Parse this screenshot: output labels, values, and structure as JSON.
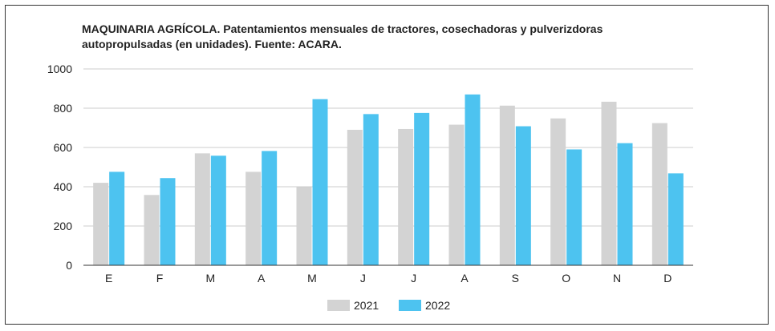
{
  "chart_data": {
    "type": "bar",
    "title": "MAQUINARIA AGRÍCOLA. Patentamientos mensuales de tractores, cosechadoras y pulverizdoras autopropulsadas (en unidades). Fuente: ACARA.",
    "categories": [
      "E",
      "F",
      "M",
      "A",
      "M",
      "J",
      "J",
      "A",
      "S",
      "O",
      "N",
      "D"
    ],
    "series": [
      {
        "name": "2021",
        "color": "#d3d3d3",
        "values": [
          420,
          358,
          570,
          476,
          398,
          690,
          694,
          716,
          813,
          748,
          833,
          724
        ]
      },
      {
        "name": "2022",
        "color": "#4dc3f0",
        "values": [
          476,
          444,
          558,
          582,
          846,
          770,
          776,
          870,
          708,
          590,
          622,
          468
        ]
      }
    ],
    "ylim": [
      0,
      1000
    ],
    "yticks": [
      "0",
      "200",
      "400",
      "600",
      "800",
      "1000"
    ],
    "grid": true,
    "legend_position": "bottom"
  }
}
